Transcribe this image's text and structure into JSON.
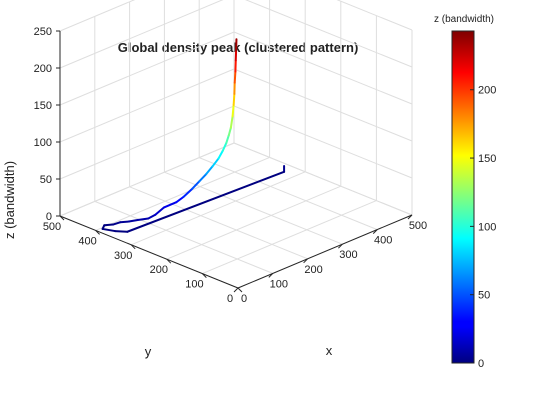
{
  "chart_data": {
    "type": "line3d",
    "title": "Global density peak (clustered pattern)",
    "xlabel": "x",
    "ylabel": "y",
    "zlabel": "z (bandwidth)",
    "xlim": [
      0,
      500
    ],
    "ylim": [
      0,
      500
    ],
    "zlim": [
      0,
      250
    ],
    "xticks": [
      0,
      100,
      200,
      300,
      400,
      500
    ],
    "yticks": [
      0,
      100,
      200,
      300,
      400,
      500
    ],
    "zticks": [
      0,
      50,
      100,
      150,
      200,
      250
    ],
    "grid": true,
    "colormap": "jet",
    "colorbar": {
      "label": "z (bandwidth)",
      "range": [
        0,
        243
      ],
      "ticks": [
        0,
        50,
        100,
        150,
        200
      ]
    },
    "series": [
      {
        "points": [
          {
            "x": 470,
            "y": 330,
            "z": 8
          },
          {
            "x": 470,
            "y": 330,
            "z": 0
          },
          {
            "x": 40,
            "y": 350,
            "z": 0
          },
          {
            "x": 25,
            "y": 370,
            "z": 0
          },
          {
            "x": 15,
            "y": 395,
            "z": 0
          },
          {
            "x": 30,
            "y": 405,
            "z": 0
          },
          {
            "x": 45,
            "y": 395,
            "z": 0
          },
          {
            "x": 50,
            "y": 380,
            "z": 5
          },
          {
            "x": 65,
            "y": 370,
            "z": 5
          },
          {
            "x": 70,
            "y": 350,
            "z": 10
          },
          {
            "x": 90,
            "y": 340,
            "z": 10
          },
          {
            "x": 100,
            "y": 330,
            "z": 15
          },
          {
            "x": 120,
            "y": 325,
            "z": 22
          },
          {
            "x": 140,
            "y": 310,
            "z": 28
          },
          {
            "x": 150,
            "y": 300,
            "z": 35
          },
          {
            "x": 165,
            "y": 290,
            "z": 45
          },
          {
            "x": 175,
            "y": 280,
            "z": 55
          },
          {
            "x": 185,
            "y": 270,
            "z": 65
          },
          {
            "x": 195,
            "y": 262,
            "z": 75
          },
          {
            "x": 205,
            "y": 255,
            "z": 85
          },
          {
            "x": 212,
            "y": 250,
            "z": 95
          },
          {
            "x": 218,
            "y": 246,
            "z": 105
          },
          {
            "x": 222,
            "y": 243,
            "z": 115
          },
          {
            "x": 226,
            "y": 241,
            "z": 125
          },
          {
            "x": 230,
            "y": 240,
            "z": 140
          },
          {
            "x": 232,
            "y": 239,
            "z": 155
          },
          {
            "x": 233,
            "y": 238,
            "z": 170
          },
          {
            "x": 234,
            "y": 238,
            "z": 185
          },
          {
            "x": 235,
            "y": 237,
            "z": 200
          },
          {
            "x": 236,
            "y": 237,
            "z": 215
          },
          {
            "x": 237,
            "y": 237,
            "z": 228
          },
          {
            "x": 238,
            "y": 237,
            "z": 243
          }
        ]
      }
    ]
  }
}
